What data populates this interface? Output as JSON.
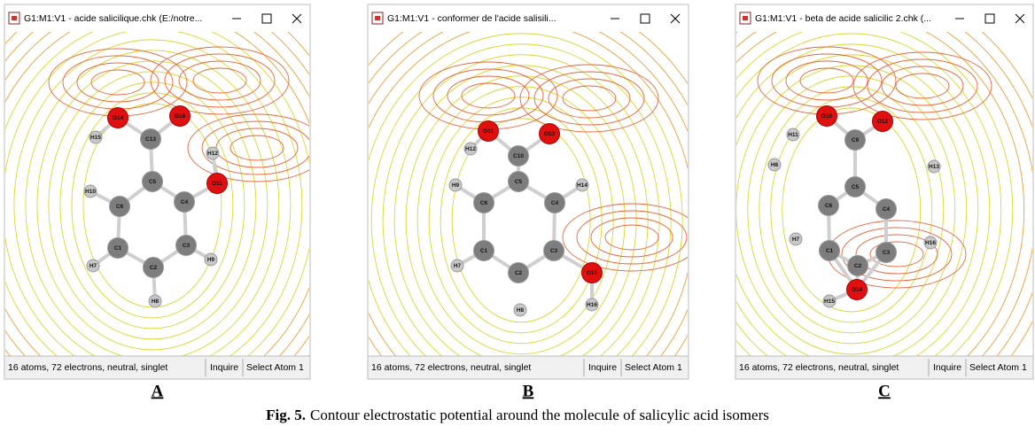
{
  "figure": {
    "panels": [
      {
        "title": "G1:M1:V1 - acide salicilique.chk (E:/notre...",
        "atoms": [
          "O14",
          "O16",
          "H15",
          "C13",
          "H12",
          "C5",
          "O11",
          "H10",
          "C4",
          "C6",
          "C1",
          "C3",
          "C2",
          "H7",
          "H9",
          "H8"
        ],
        "status": "16 atoms, 72 electrons, neutral, singlet",
        "inquire": "Inquire",
        "select": "Select Atom 1",
        "label": "A"
      },
      {
        "title": "G1:M1:V1 - conformer de l'acide salisili...",
        "atoms": [
          "O11",
          "O13",
          "H12",
          "C10",
          "C5",
          "H9",
          "C6",
          "C4",
          "H14",
          "C1",
          "C3",
          "C2",
          "H7",
          "O15",
          "H8",
          "H16"
        ],
        "status": "16 atoms, 72 electrons, neutral, singlet",
        "inquire": "Inquire",
        "select": "Select Atom 1",
        "label": "B"
      },
      {
        "title": "G1:M1:V1 - beta de acide salicilic 2.chk (...",
        "atoms": [
          "O10",
          "O12",
          "H11",
          "C9",
          "C5",
          "H8",
          "H13",
          "C6",
          "C4",
          "C1",
          "C3",
          "C2",
          "H7",
          "H16",
          "O14",
          "H15"
        ],
        "status": "16 atoms, 72 electrons, neutral, singlet",
        "inquire": "Inquire",
        "select": "Select Atom 1",
        "label": "C"
      }
    ],
    "caption": {
      "number": "Fig. 5.",
      "text": "Contour electrostatic potential around the molecule of salicylic acid isomers"
    }
  }
}
